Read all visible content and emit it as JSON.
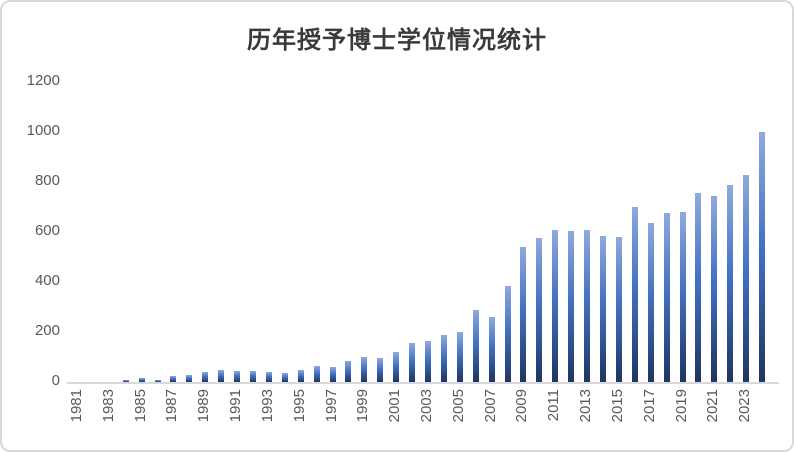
{
  "chart": {
    "title": "历年授予博士学位情况统计"
  },
  "chart_data": {
    "type": "bar",
    "title": "历年授予博士学位情况统计",
    "xlabel": "",
    "ylabel": "",
    "grid": false,
    "legend": "none",
    "ylim": [
      0,
      1200
    ],
    "y_ticks": [
      0,
      200,
      400,
      600,
      800,
      1000,
      1200
    ],
    "x_tick_labels": [
      "1981",
      "1983",
      "1985",
      "1987",
      "1989",
      "1991",
      "1993",
      "1995",
      "1997",
      "1999",
      "2001",
      "2003",
      "2005",
      "2007",
      "2009",
      "2011",
      "2013",
      "2015",
      "2017",
      "2019",
      "2021",
      "2023"
    ],
    "categories": [
      1981,
      1982,
      1983,
      1984,
      1985,
      1986,
      1987,
      1988,
      1989,
      1990,
      1991,
      1992,
      1993,
      1994,
      1995,
      1996,
      1997,
      1998,
      1999,
      2000,
      2001,
      2002,
      2003,
      2004,
      2005,
      2006,
      2007,
      2008,
      2009,
      2010,
      2011,
      2012,
      2013,
      2014,
      2015,
      2016,
      2017,
      2018,
      2019,
      2020,
      2021,
      2022,
      2023,
      2024
    ],
    "values": [
      0,
      0,
      0,
      10,
      15,
      10,
      25,
      30,
      40,
      50,
      45,
      45,
      40,
      35,
      50,
      65,
      60,
      85,
      100,
      95,
      120,
      155,
      165,
      190,
      200,
      290,
      260,
      385,
      540,
      575,
      610,
      605,
      610,
      585,
      580,
      700,
      635,
      675,
      680,
      755,
      745,
      790,
      830,
      1000
    ],
    "colors": {
      "bar_gradient_top": "#8faadc",
      "bar_gradient_mid": "#4472c4",
      "bar_gradient_bottom": "#1e3560",
      "axis_line": "#d9d9d9",
      "tick_label": "#595959",
      "title": "#3a3a3a",
      "border": "#d9d9d9",
      "background": "#ffffff"
    }
  }
}
